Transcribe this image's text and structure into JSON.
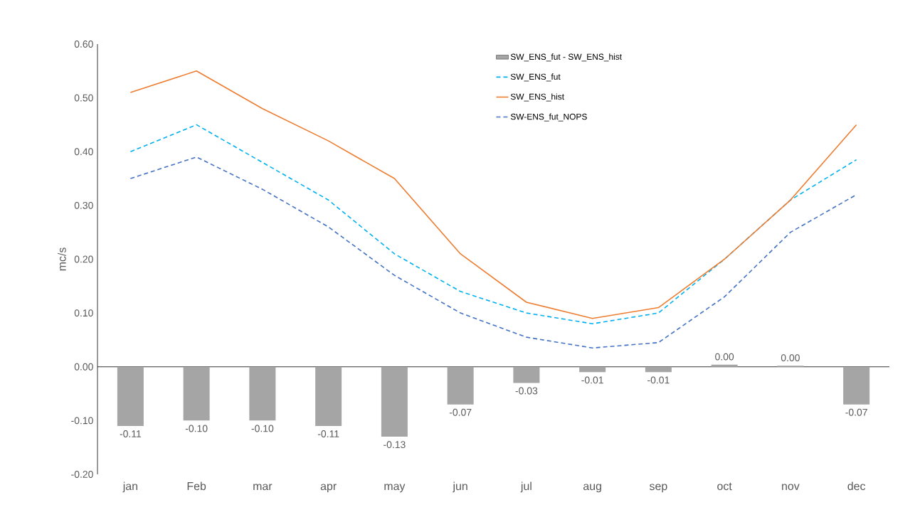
{
  "chart_data": {
    "type": "line",
    "ylabel": "mc/s",
    "categories": [
      "jan",
      "Feb",
      "mar",
      "apr",
      "may",
      "jun",
      "jul",
      "aug",
      "sep",
      "oct",
      "nov",
      "dec"
    ],
    "series": [
      {
        "name": "SW_ENS_fut - SW_ENS_hist",
        "type": "bar",
        "color": "#a5a5a5",
        "values": [
          -0.11,
          -0.1,
          -0.1,
          -0.11,
          -0.13,
          -0.07,
          -0.03,
          -0.01,
          -0.01,
          0.004,
          0.002,
          -0.07
        ],
        "value_labels": [
          "-0.11",
          "-0.10",
          "-0.10",
          "-0.11",
          "-0.13",
          "-0.07",
          "-0.03",
          "-0.01",
          "-0.01",
          "0.00",
          "0.00",
          "-0.07"
        ]
      },
      {
        "name": "SW_ENS_fut",
        "color": "#00b0f0",
        "line_style": "dashed",
        "values": [
          0.4,
          0.45,
          0.38,
          0.31,
          0.21,
          0.14,
          0.1,
          0.08,
          0.1,
          0.2,
          0.31,
          0.385
        ]
      },
      {
        "name": "SW_ENS_hist",
        "color": "#ed7d31",
        "line_style": "solid",
        "values": [
          0.51,
          0.55,
          0.48,
          0.42,
          0.35,
          0.21,
          0.12,
          0.09,
          0.11,
          0.2,
          0.31,
          0.45
        ]
      },
      {
        "name": "SW-ENS_fut_NOPS",
        "color": "#4472c4",
        "line_style": "dashed",
        "values": [
          0.35,
          0.39,
          0.33,
          0.26,
          0.17,
          0.1,
          0.055,
          0.035,
          0.045,
          0.13,
          0.25,
          0.32
        ]
      }
    ],
    "ylim": [
      -0.2,
      0.6
    ],
    "yticks": [
      {
        "value": -0.2,
        "label": "-0.20"
      },
      {
        "value": -0.1,
        "label": "-0.10"
      },
      {
        "value": 0,
        "label": "0.00"
      },
      {
        "value": 0.1,
        "label": "0.10"
      },
      {
        "value": 0.2,
        "label": "0.20"
      },
      {
        "value": 0.3,
        "label": "0.30"
      },
      {
        "value": 0.4,
        "label": "0.40"
      },
      {
        "value": 0.5,
        "label": "0.50"
      },
      {
        "value": 0.6,
        "label": "0.60"
      }
    ],
    "legend": "top right"
  }
}
